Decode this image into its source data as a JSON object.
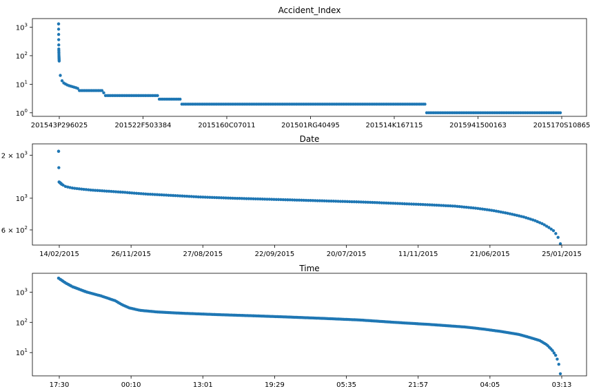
{
  "chart_data": [
    {
      "type": "scatter",
      "title": "Accident_Index",
      "yscale": "log",
      "ylim": [
        0.75,
        2000
      ],
      "yticks": [
        {
          "value": 1,
          "base": "10",
          "exp": "0"
        },
        {
          "value": 10,
          "base": "10",
          "exp": "1"
        },
        {
          "value": 100,
          "base": "10",
          "exp": "2"
        },
        {
          "value": 1000,
          "base": "10",
          "exp": "3"
        }
      ],
      "xticklabels": [
        "201543P296025",
        "201522F503384",
        "2015160C07011",
        "201501RG40495",
        "201514K167115",
        "2015941500163",
        "2015170S10865"
      ],
      "color": "#1f77b4",
      "profile": [
        [
          0,
          1300
        ],
        [
          0.3,
          180
        ],
        [
          0.6,
          95
        ],
        [
          0.9,
          65
        ],
        [
          1.3,
          45
        ],
        [
          1.8,
          30
        ],
        [
          2.4,
          22
        ],
        [
          3.2,
          17
        ],
        [
          4.5,
          14
        ],
        [
          6,
          12.5
        ],
        [
          8,
          11
        ],
        [
          11,
          10
        ],
        [
          14,
          9.2
        ],
        [
          18,
          8.6
        ],
        [
          22,
          8.1
        ],
        [
          26,
          7.6
        ],
        [
          30,
          7
        ],
        [
          30.01,
          6
        ],
        [
          67,
          6
        ],
        [
          67.01,
          5
        ],
        [
          69,
          5
        ],
        [
          69.01,
          4
        ],
        [
          152,
          4
        ],
        [
          152.01,
          3
        ],
        [
          185,
          3
        ],
        [
          185.01,
          2
        ],
        [
          555,
          2
        ],
        [
          555.01,
          1
        ],
        [
          760,
          1
        ]
      ],
      "count": 290
    },
    {
      "type": "scatter",
      "title": "Date",
      "yscale": "log",
      "ylim": [
        470,
        2400
      ],
      "yticks": [
        {
          "value": 600,
          "base": "6 × 10",
          "exp": "2"
        },
        {
          "value": 1000,
          "base": "10",
          "exp": "3"
        },
        {
          "value": 2000,
          "base": "2 × 10",
          "exp": "3"
        }
      ],
      "xticklabels": [
        "14/02/2015",
        "26/11/2015",
        "27/08/2015",
        "22/09/2015",
        "20/07/2015",
        "11/11/2015",
        "21/06/2015",
        "25/01/2015"
      ],
      "color": "#1f77b4",
      "profile": [
        [
          0,
          2130
        ],
        [
          0.4,
          1300
        ],
        [
          1.5,
          1280
        ],
        [
          3,
          1250
        ],
        [
          6,
          1210
        ],
        [
          12,
          1180
        ],
        [
          20,
          1160
        ],
        [
          30,
          1140
        ],
        [
          45,
          1120
        ],
        [
          60,
          1100
        ],
        [
          80,
          1070
        ],
        [
          100,
          1050
        ],
        [
          130,
          1020
        ],
        [
          160,
          1000
        ],
        [
          200,
          980
        ],
        [
          240,
          960
        ],
        [
          280,
          940
        ],
        [
          310,
          920
        ],
        [
          340,
          900
        ],
        [
          365,
          880
        ],
        [
          385,
          850
        ],
        [
          400,
          820
        ],
        [
          415,
          780
        ],
        [
          428,
          740
        ],
        [
          438,
          700
        ],
        [
          446,
          660
        ],
        [
          452,
          620
        ],
        [
          456,
          590
        ],
        [
          459,
          550
        ],
        [
          461,
          510
        ],
        [
          462,
          480
        ]
      ],
      "count": 220
    },
    {
      "type": "scatter",
      "title": "Time",
      "yscale": "log",
      "ylim": [
        1.7,
        4200
      ],
      "yticks": [
        {
          "value": 10,
          "base": "10",
          "exp": "1"
        },
        {
          "value": 100,
          "base": "10",
          "exp": "2"
        },
        {
          "value": 1000,
          "base": "10",
          "exp": "3"
        }
      ],
      "xticklabels": [
        "17:30",
        "00:10",
        "13:01",
        "19:29",
        "05:35",
        "21:57",
        "04:05",
        "03:13"
      ],
      "color": "#1f77b4",
      "profile": [
        [
          0,
          2900
        ],
        [
          20,
          2000
        ],
        [
          40,
          1500
        ],
        [
          80,
          1000
        ],
        [
          120,
          750
        ],
        [
          160,
          520
        ],
        [
          180,
          380
        ],
        [
          200,
          300
        ],
        [
          230,
          250
        ],
        [
          280,
          220
        ],
        [
          350,
          200
        ],
        [
          450,
          180
        ],
        [
          550,
          165
        ],
        [
          650,
          150
        ],
        [
          750,
          135
        ],
        [
          850,
          120
        ],
        [
          950,
          100
        ],
        [
          1050,
          85
        ],
        [
          1150,
          70
        ],
        [
          1200,
          60
        ],
        [
          1250,
          50
        ],
        [
          1300,
          40
        ],
        [
          1330,
          32
        ],
        [
          1360,
          25
        ],
        [
          1380,
          18
        ],
        [
          1395,
          12
        ],
        [
          1405,
          8
        ],
        [
          1412,
          5
        ],
        [
          1416,
          3
        ],
        [
          1418,
          2
        ]
      ],
      "count": 320
    }
  ]
}
